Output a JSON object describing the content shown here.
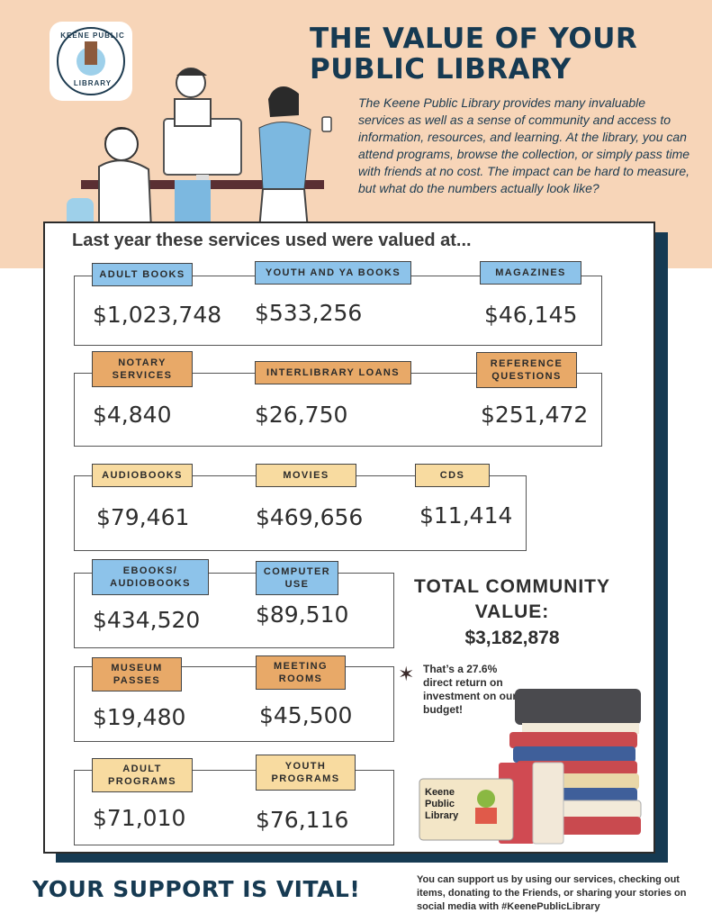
{
  "header": {
    "title_line1": "THE VALUE OF YOUR",
    "title_line2": "PUBLIC LIBRARY",
    "logo_top": "KEENE PUBLIC",
    "logo_bottom": "LIBRARY",
    "intro": "The Keene Public Library provides many invaluable services as well as a sense of community and access to information, resources, and learning. At the library, you can attend programs, browse the collection, or simply pass time with friends at no cost. The impact can be hard to measure, but what do the numbers actually look like?"
  },
  "panel": {
    "heading": "Last year these services used were valued at..."
  },
  "services": [
    {
      "label": "ADULT BOOKS",
      "value": "$1,023,748"
    },
    {
      "label": "YOUTH AND YA BOOKS",
      "value": "$533,256"
    },
    {
      "label": "MAGAZINES",
      "value": "$46,145"
    },
    {
      "label": "NOTARY SERVICES",
      "value": "$4,840"
    },
    {
      "label": "INTERLIBRARY LOANS",
      "value": "$26,750"
    },
    {
      "label": "REFERENCE QUESTIONS",
      "value": "$251,472"
    },
    {
      "label": "AUDIOBOOKS",
      "value": "$79,461"
    },
    {
      "label": "MOVIES",
      "value": "$469,656"
    },
    {
      "label": "CDS",
      "value": "$11,414"
    },
    {
      "label": "EBOOKS/ AUDIOBOOKS",
      "value": "$434,520"
    },
    {
      "label": "COMPUTER USE",
      "value": "$89,510"
    },
    {
      "label": "MUSEUM PASSES",
      "value": "$19,480"
    },
    {
      "label": "MEETING ROOMS",
      "value": "$45,500"
    },
    {
      "label": "ADULT PROGRAMS",
      "value": "$71,010"
    },
    {
      "label": "YOUTH PROGRAMS",
      "value": "$76,116"
    }
  ],
  "total": {
    "title": "TOTAL COMMUNITY VALUE:",
    "value": "$3,182,878",
    "roi": "That’s a 27.6% direct return on investment on our budget!"
  },
  "card": {
    "line1": "Keene",
    "line2": "Public",
    "line3": "Library"
  },
  "footer": {
    "slogan": "YOUR SUPPORT IS VITAL!",
    "text": "You can support us by using our services, checking out items, donating to the Friends, or sharing your stories on social media with #KeenePublicLibrary"
  },
  "colors": {
    "navy": "#163a52",
    "peach": "#f7d5b8",
    "blue_label": "#8dc3ea",
    "orange_label": "#e8a968",
    "yellow_label": "#f8dba0"
  }
}
